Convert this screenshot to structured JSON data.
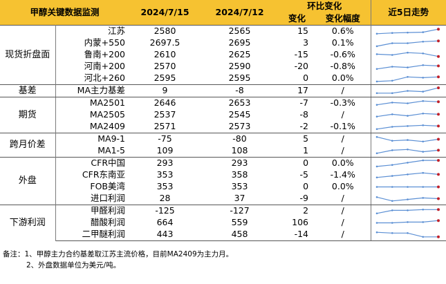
{
  "header": {
    "title": "甲醇关键数据监测",
    "date1": "2024/7/15",
    "date2": "2024/7/12",
    "group_change": "环比变化",
    "col_change": "变化",
    "col_pct": "变化幅度",
    "col_trend": "近5日走势"
  },
  "colors": {
    "header_bg": "#f6c231",
    "spark_line": "#5b8fd4",
    "spark_point": "#c0202a"
  },
  "groups": [
    {
      "category": "现货折盘面",
      "rows": [
        {
          "name": "江苏",
          "v1": "2580",
          "v2": "2565",
          "chg": "15",
          "pct": "0.6%",
          "trend": [
            0.2,
            0.3,
            0.35,
            0.4,
            0.8
          ]
        },
        {
          "name": "内蒙+550",
          "v1": "2697.5",
          "v2": "2695",
          "chg": "3",
          "pct": "0.1%",
          "trend": [
            0.1,
            0.5,
            0.5,
            0.7,
            0.8
          ]
        },
        {
          "name": "鲁南+200",
          "v1": "2610",
          "v2": "2625",
          "chg": "-15",
          "pct": "-0.6%",
          "trend": [
            0.6,
            0.5,
            0.8,
            0.7,
            0.3
          ]
        },
        {
          "name": "河南+200",
          "v1": "2570",
          "v2": "2590",
          "chg": "-20",
          "pct": "-0.8%",
          "trend": [
            0.2,
            0.5,
            0.4,
            0.7,
            0.6
          ]
        },
        {
          "name": "河北+260",
          "v1": "2595",
          "v2": "2595",
          "chg": "0",
          "pct": "0.0%",
          "trend": [
            0.1,
            0.2,
            0.7,
            0.6,
            0.7
          ]
        }
      ]
    },
    {
      "category": "基差",
      "rows": [
        {
          "name": "MA主力基差",
          "v1": "9",
          "v2": "-8",
          "chg": "17",
          "pct": "/",
          "trend": [
            0.2,
            0.2,
            0.5,
            0.4,
            0.9
          ]
        }
      ]
    },
    {
      "category": "期货",
      "rows": [
        {
          "name": "MA2501",
          "v1": "2646",
          "v2": "2653",
          "chg": "-7",
          "pct": "-0.3%",
          "trend": [
            0.3,
            0.6,
            0.5,
            0.8,
            0.7
          ]
        },
        {
          "name": "MA2505",
          "v1": "2537",
          "v2": "2545",
          "chg": "-8",
          "pct": "/",
          "trend": [
            0.3,
            0.6,
            0.4,
            0.7,
            0.6
          ]
        },
        {
          "name": "MA2409",
          "v1": "2571",
          "v2": "2573",
          "chg": "-2",
          "pct": "-0.1%",
          "trend": [
            0.2,
            0.5,
            0.6,
            0.7,
            0.6
          ]
        }
      ]
    },
    {
      "category": "跨月价差",
      "rows": [
        {
          "name": "MA9-1",
          "v1": "-75",
          "v2": "-80",
          "chg": "5",
          "pct": "/",
          "trend": [
            0.8,
            0.3,
            0.4,
            0.2,
            0.5
          ]
        },
        {
          "name": "MA1-5",
          "v1": "109",
          "v2": "108",
          "chg": "1",
          "pct": "/",
          "trend": [
            0.2,
            0.6,
            0.7,
            0.4,
            0.6
          ]
        }
      ]
    },
    {
      "category": "外盘",
      "rows": [
        {
          "name": "CFR中国",
          "v1": "293",
          "v2": "293",
          "chg": "0",
          "pct": "0.0%",
          "trend": [
            0.1,
            0.3,
            0.6,
            0.9,
            0.9
          ]
        },
        {
          "name": "CFR东南亚",
          "v1": "353",
          "v2": "358",
          "chg": "-5",
          "pct": "-1.4%",
          "trend": [
            0.2,
            0.4,
            0.6,
            0.8,
            0.6
          ]
        },
        {
          "name": "FOB美湾",
          "v1": "353",
          "v2": "353",
          "chg": "0",
          "pct": "0.0%",
          "trend": [
            0.5,
            0.5,
            0.5,
            0.5,
            0.5
          ]
        },
        {
          "name": "进口利润",
          "v1": "28",
          "v2": "37",
          "chg": "-9",
          "pct": "/",
          "trend": [
            0.7,
            0.2,
            0.4,
            0.6,
            0.5
          ]
        }
      ]
    },
    {
      "category": "下游利润",
      "rows": [
        {
          "name": "甲醛利润",
          "v1": "-125",
          "v2": "-127",
          "chg": "2",
          "pct": "/",
          "trend": [
            0.2,
            0.6,
            0.6,
            0.7,
            0.7
          ]
        },
        {
          "name": "醋酸利润",
          "v1": "664",
          "v2": "559",
          "chg": "106",
          "pct": "/",
          "trend": [
            0.5,
            0.5,
            0.6,
            0.6,
            0.8
          ]
        },
        {
          "name": "二甲醚利润",
          "v1": "443",
          "v2": "458",
          "chg": "-14",
          "pct": "/",
          "trend": [
            0.8,
            0.7,
            0.7,
            0.2,
            0.2
          ]
        }
      ]
    }
  ],
  "notes": [
    "备注：1、甲醇主力合约基差取江苏主流价格，目前MA2409为主力月。",
    "2、外盘数据单位为美元/吨。"
  ]
}
